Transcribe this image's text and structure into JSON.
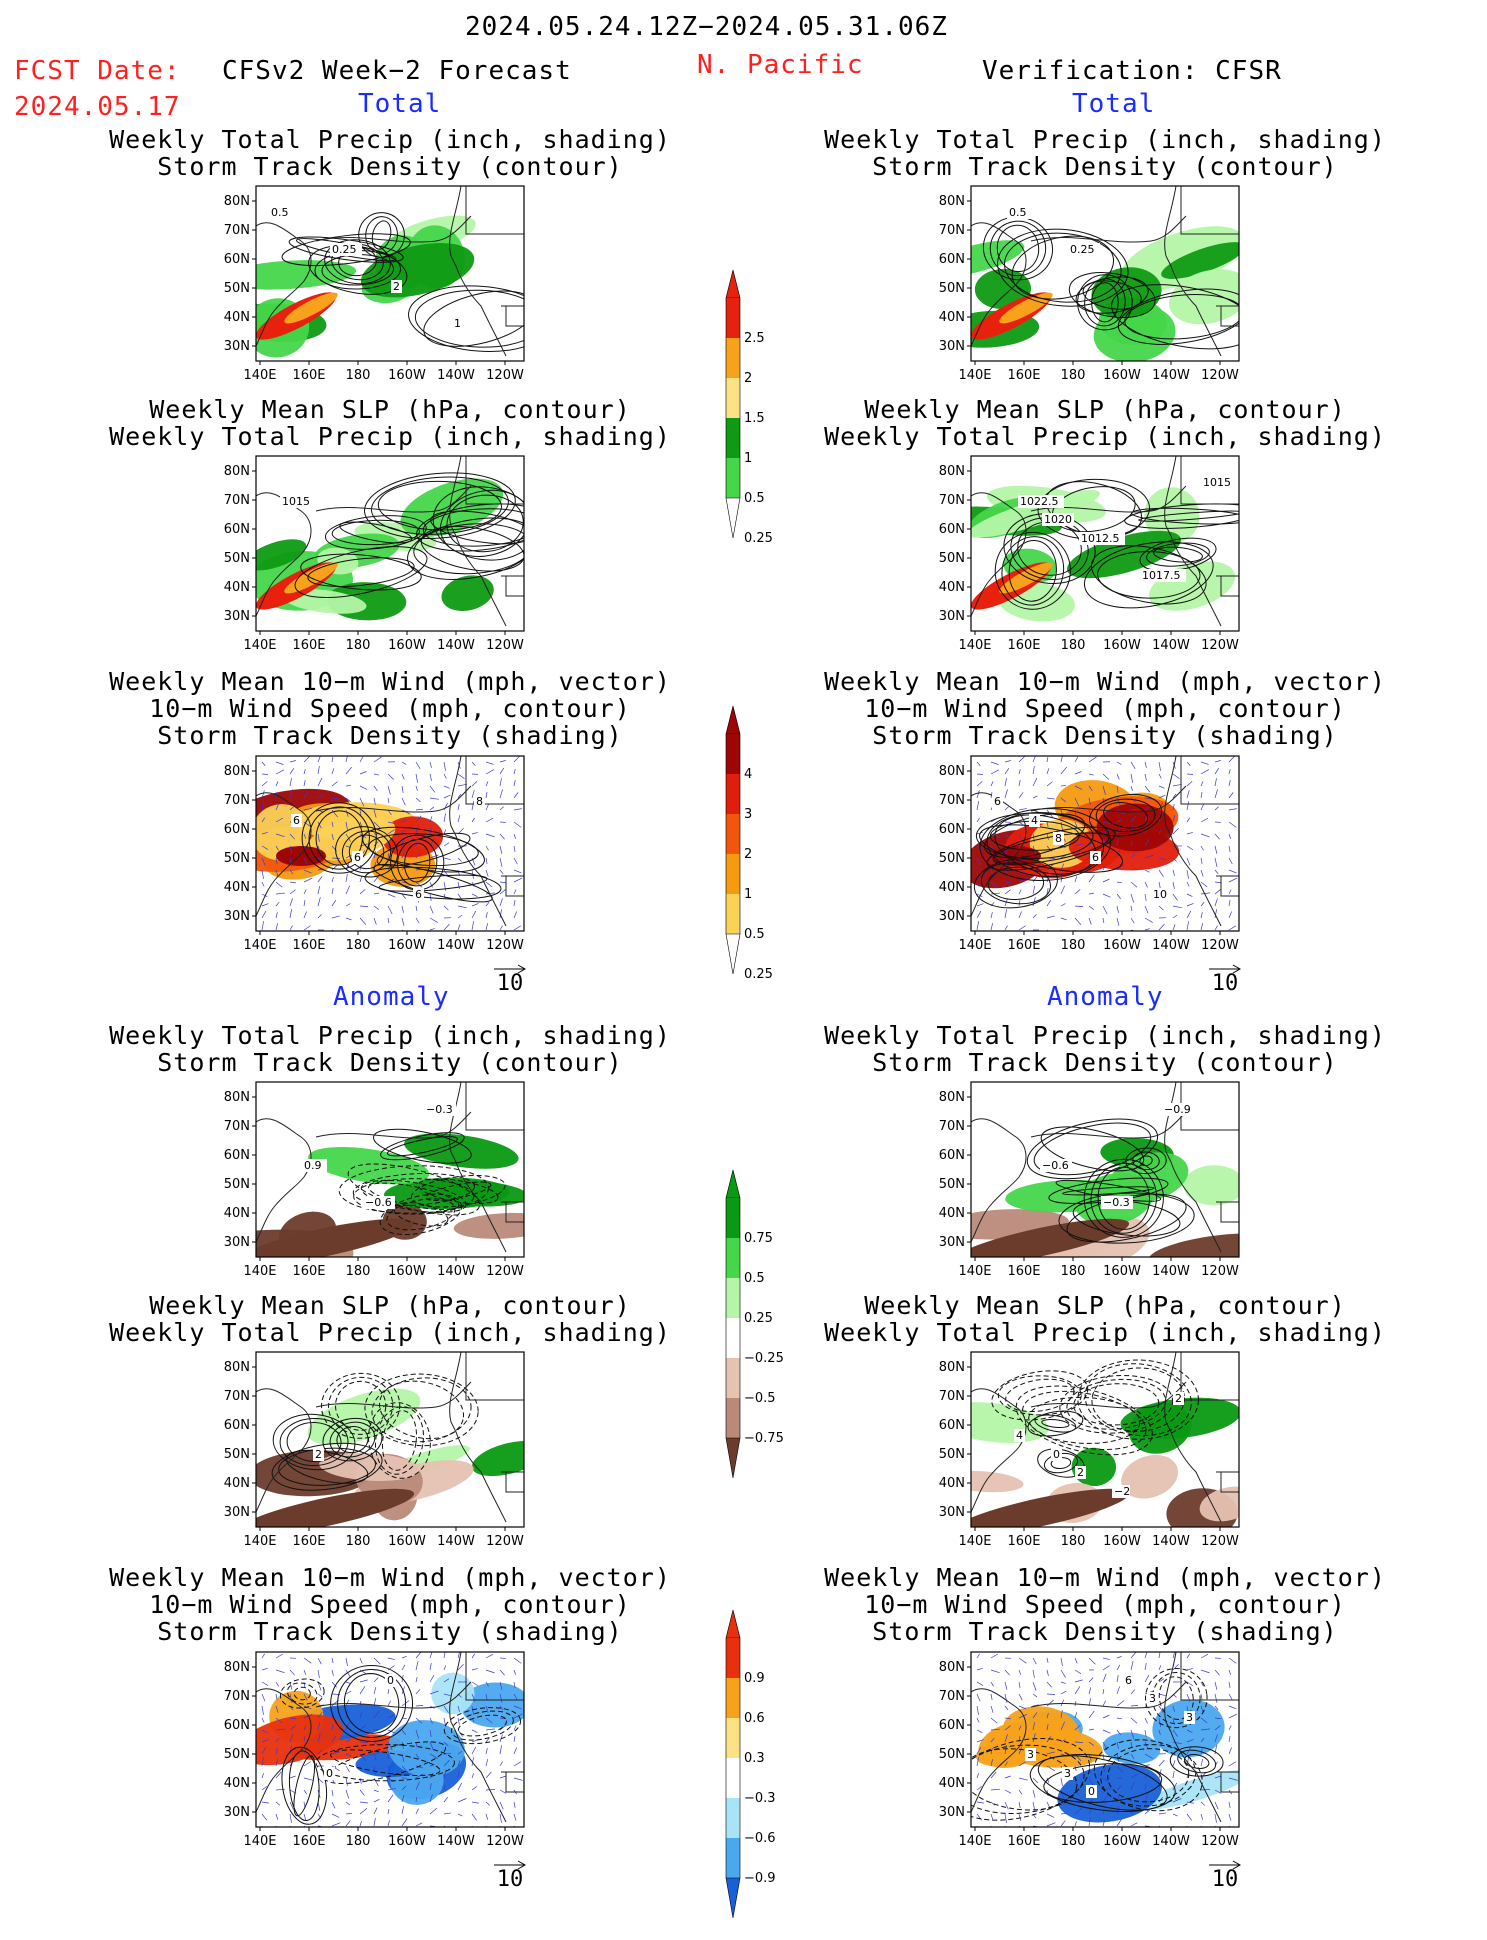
{
  "header": {
    "period": "2024.05.24.12Z−2024.05.31.06Z",
    "fcst_label": "FCST Date:",
    "fcst_date": "2024.05.17",
    "forecast_title": "CFSv2 Week−2 Forecast",
    "region": "N. Pacific",
    "verification": "Verification: CFSR"
  },
  "sections": {
    "total": "Total",
    "anomaly": "Anomaly"
  },
  "panel_titles": {
    "precip_storm": [
      "Weekly Total Precip (inch, shading)",
      "Storm Track Density (contour)"
    ],
    "slp_precip": [
      "Weekly Mean SLP (hPa, contour)",
      "Weekly Total Precip (inch, shading)"
    ],
    "wind_storm": [
      "Weekly Mean 10−m Wind (mph, vector)",
      "10−m Wind Speed (mph, contour)",
      "Storm Track Density (shading)"
    ]
  },
  "axes": {
    "lat_labels": [
      "80N",
      "70N",
      "60N",
      "50N",
      "40N",
      "30N"
    ],
    "lon_labels": [
      "140E",
      "160E",
      "180",
      "160W",
      "140W",
      "120W"
    ]
  },
  "vector_ref": "10",
  "colorbars": {
    "total_precip": {
      "labels": [
        "2.5",
        "2",
        "1.5",
        "1",
        "0.5",
        "0.25"
      ],
      "colors": [
        "#e8200e",
        "#f7a21a",
        "#fde285",
        "#0f9a13",
        "#45d64a",
        "#b4f5a8"
      ]
    },
    "total_storm": {
      "labels": [
        "4",
        "3",
        "2",
        "1",
        "0.5",
        "0.25"
      ],
      "colors": [
        "#9e0606",
        "#e11e0b",
        "#f2560c",
        "#f69a10",
        "#fbd156",
        "#fff3a0"
      ]
    },
    "anom_precip": {
      "labels": [
        "0.75",
        "0.5",
        "0.25",
        "−0.25",
        "−0.5",
        "−0.75"
      ],
      "colors": [
        "#0a9912",
        "#45d64a",
        "#b4f5a8",
        "#ffffff",
        "#e6c2b2",
        "#b98a7a",
        "#6b3c2c"
      ]
    },
    "anom_storm": {
      "labels": [
        "0.9",
        "0.6",
        "0.3",
        "−0.3",
        "−0.6",
        "−0.9"
      ],
      "colors": [
        "#e8300e",
        "#f7a21a",
        "#fde285",
        "#ffffff",
        "#a8e4f7",
        "#4aa8ee",
        "#1860d8"
      ]
    }
  },
  "contour_labels": {
    "p_fc_total_1": [
      "0.5",
      "0.25",
      "2",
      "1"
    ],
    "p_cf_total_1": [
      "0.5",
      "0.25"
    ],
    "p_fc_total_2": [
      "1015"
    ],
    "p_cf_total_2": [
      "1022.5",
      "1012.5",
      "1017.5",
      "1015",
      "1020"
    ],
    "p_fc_total_3": [
      "6",
      "6",
      "6",
      "8"
    ],
    "p_cf_total_3": [
      "4",
      "6",
      "10",
      "6",
      "8"
    ],
    "p_fc_anom_1": [
      "0.9",
      "−0.6",
      "−0.3"
    ],
    "p_cf_anom_1": [
      "−0.6",
      "−0.3",
      "−0.9"
    ],
    "p_fc_anom_2": [
      "2"
    ],
    "p_cf_anom_2": [
      "0",
      "−2",
      "2",
      "4",
      "2"
    ],
    "p_fc_anom_3": [
      "0",
      "0"
    ],
    "p_cf_anom_3": [
      "3",
      "6",
      "3",
      "3",
      "0",
      "3"
    ]
  }
}
